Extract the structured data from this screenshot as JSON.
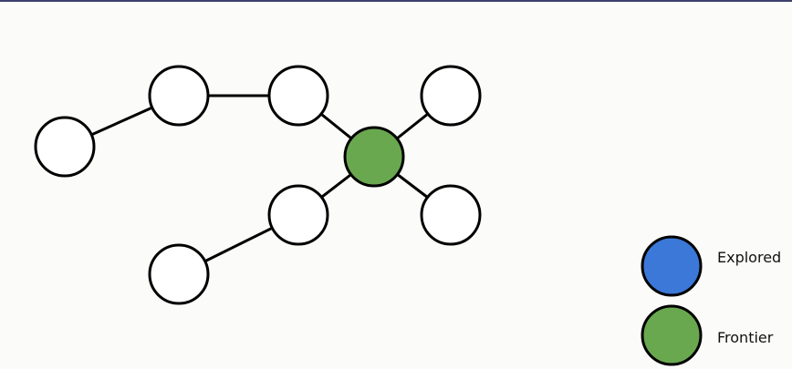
{
  "colors": {
    "unvisited": "#ffffff",
    "explored": "#3b78d8",
    "frontier": "#6aa84f"
  },
  "graph": {
    "nodes": [
      {
        "id": "n1",
        "state": "unvisited"
      },
      {
        "id": "n2",
        "state": "unvisited"
      },
      {
        "id": "n3",
        "state": "unvisited"
      },
      {
        "id": "n4",
        "state": "unvisited"
      },
      {
        "id": "n5",
        "state": "frontier"
      },
      {
        "id": "n6",
        "state": "unvisited"
      },
      {
        "id": "n7",
        "state": "unvisited"
      },
      {
        "id": "n8",
        "state": "unvisited"
      }
    ],
    "edges": [
      [
        "n1",
        "n2"
      ],
      [
        "n2",
        "n3"
      ],
      [
        "n3",
        "n5"
      ],
      [
        "n4",
        "n5"
      ],
      [
        "n5",
        "n6"
      ],
      [
        "n5",
        "n7"
      ],
      [
        "n6",
        "n8"
      ]
    ]
  },
  "legend": {
    "items": [
      {
        "label": "Explored",
        "state": "explored"
      },
      {
        "label": "Frontier",
        "state": "frontier"
      }
    ]
  }
}
